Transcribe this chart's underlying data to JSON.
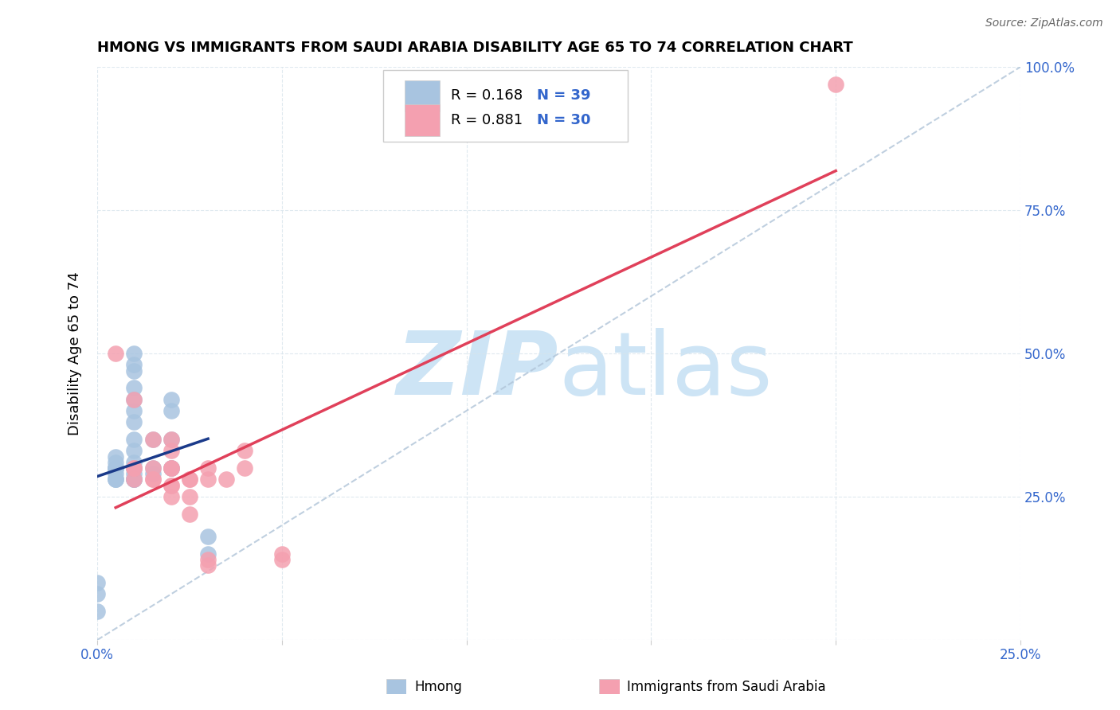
{
  "title": "HMONG VS IMMIGRANTS FROM SAUDI ARABIA DISABILITY AGE 65 TO 74 CORRELATION CHART",
  "source": "Source: ZipAtlas.com",
  "ylabel": "Disability Age 65 to 74",
  "xlim": [
    0,
    0.25
  ],
  "ylim": [
    0,
    1.0
  ],
  "legend_label1": "Hmong",
  "legend_label2": "Immigrants from Saudi Arabia",
  "R1": 0.168,
  "N1": 39,
  "R2": 0.881,
  "N2": 30,
  "color1": "#a8c4e0",
  "color2": "#f4a0b0",
  "line_color1": "#1a3a8a",
  "line_color2": "#e0405a",
  "diag_color": "#b0c4d8",
  "watermark_zip": "ZIP",
  "watermark_atlas": "atlas",
  "watermark_color": "#cde4f5",
  "tick_color": "#3366cc",
  "hmong_x": [
    0.0,
    0.0,
    0.0,
    0.005,
    0.005,
    0.005,
    0.005,
    0.005,
    0.005,
    0.005,
    0.005,
    0.005,
    0.005,
    0.01,
    0.01,
    0.01,
    0.01,
    0.01,
    0.01,
    0.01,
    0.01,
    0.01,
    0.01,
    0.01,
    0.01,
    0.01,
    0.01,
    0.01,
    0.01,
    0.015,
    0.015,
    0.015,
    0.02,
    0.02,
    0.02,
    0.02,
    0.02,
    0.03,
    0.03
  ],
  "hmong_y": [
    0.05,
    0.08,
    0.1,
    0.28,
    0.28,
    0.28,
    0.29,
    0.3,
    0.3,
    0.3,
    0.3,
    0.31,
    0.32,
    0.28,
    0.28,
    0.28,
    0.29,
    0.3,
    0.3,
    0.31,
    0.33,
    0.35,
    0.38,
    0.4,
    0.42,
    0.44,
    0.47,
    0.48,
    0.5,
    0.29,
    0.3,
    0.35,
    0.3,
    0.3,
    0.35,
    0.4,
    0.42,
    0.15,
    0.18
  ],
  "saudi_x": [
    0.005,
    0.01,
    0.01,
    0.01,
    0.01,
    0.015,
    0.015,
    0.015,
    0.015,
    0.02,
    0.02,
    0.02,
    0.02,
    0.02,
    0.02,
    0.02,
    0.025,
    0.025,
    0.025,
    0.025,
    0.03,
    0.03,
    0.03,
    0.03,
    0.035,
    0.04,
    0.04,
    0.05,
    0.05,
    0.2
  ],
  "saudi_y": [
    0.5,
    0.28,
    0.3,
    0.3,
    0.42,
    0.28,
    0.28,
    0.3,
    0.35,
    0.25,
    0.27,
    0.27,
    0.3,
    0.3,
    0.33,
    0.35,
    0.22,
    0.25,
    0.28,
    0.28,
    0.13,
    0.14,
    0.28,
    0.3,
    0.28,
    0.3,
    0.33,
    0.14,
    0.15,
    0.97
  ]
}
